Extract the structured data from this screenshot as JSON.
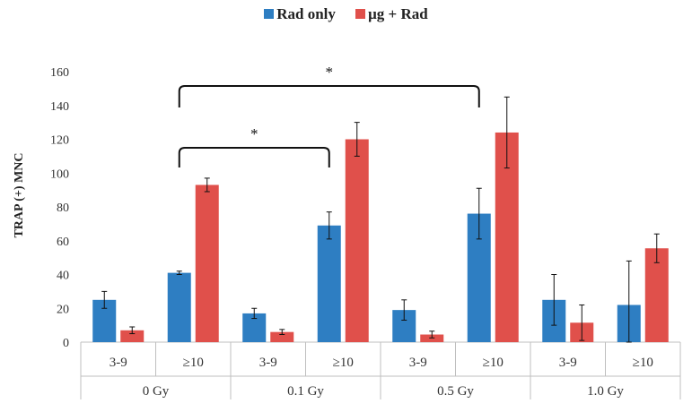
{
  "chart_data": {
    "type": "bar",
    "title": "",
    "xlabel": "",
    "ylabel": "TRAP (+) MNC",
    "ylim": [
      0,
      160
    ],
    "yticks": [
      0,
      20,
      40,
      60,
      80,
      100,
      120,
      140,
      160
    ],
    "groups": [
      "0 Gy",
      "0.1 Gy",
      "0.5 Gy",
      "1.0 Gy"
    ],
    "subcategories": [
      "3-9",
      "≥10"
    ],
    "series": [
      {
        "name": "Rad only",
        "color": "#2e7ec2",
        "values": [
          25,
          41,
          17,
          69,
          19,
          76,
          25,
          22
        ],
        "errors": [
          5,
          1,
          3,
          8,
          6,
          15,
          15,
          26
        ]
      },
      {
        "name": "μg + Rad",
        "color": "#e0504b",
        "values": [
          7,
          93,
          6,
          120,
          4.5,
          124,
          11.5,
          55.5
        ],
        "errors": [
          2,
          4,
          1.5,
          10,
          2,
          21,
          10.5,
          8.5
        ]
      }
    ],
    "annotations": [
      {
        "label": "*",
        "from_bar": 1,
        "to_bar": 3
      },
      {
        "label": "*",
        "from_bar": 1,
        "to_bar": 5
      }
    ]
  }
}
